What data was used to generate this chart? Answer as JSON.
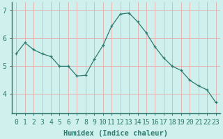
{
  "x": [
    0,
    1,
    2,
    3,
    4,
    5,
    6,
    7,
    8,
    9,
    10,
    11,
    12,
    13,
    14,
    15,
    16,
    17,
    18,
    19,
    20,
    21,
    22,
    23
  ],
  "y": [
    5.45,
    5.85,
    5.6,
    5.45,
    5.35,
    5.0,
    5.0,
    4.65,
    4.68,
    5.25,
    5.75,
    6.45,
    6.88,
    6.92,
    6.6,
    6.2,
    5.7,
    5.3,
    5.0,
    4.85,
    4.5,
    4.3,
    4.15,
    3.7
  ],
  "line_color": "#2d7a6e",
  "marker": "+",
  "bg_color": "#cff0ec",
  "grid_color_v": "#e8a0a0",
  "grid_color_h": "#c8d8d5",
  "xlabel": "Humidex (Indice chaleur)",
  "ylim": [
    3.3,
    7.3
  ],
  "xlim": [
    -0.5,
    23.5
  ],
  "yticks": [
    4,
    5,
    6,
    7
  ],
  "xticks": [
    0,
    1,
    2,
    3,
    4,
    5,
    6,
    7,
    8,
    9,
    10,
    11,
    12,
    13,
    14,
    15,
    16,
    17,
    18,
    19,
    20,
    21,
    22,
    23
  ],
  "xlabel_fontsize": 7.5,
  "tick_fontsize": 7,
  "figwidth": 3.2,
  "figheight": 2.0,
  "dpi": 100
}
